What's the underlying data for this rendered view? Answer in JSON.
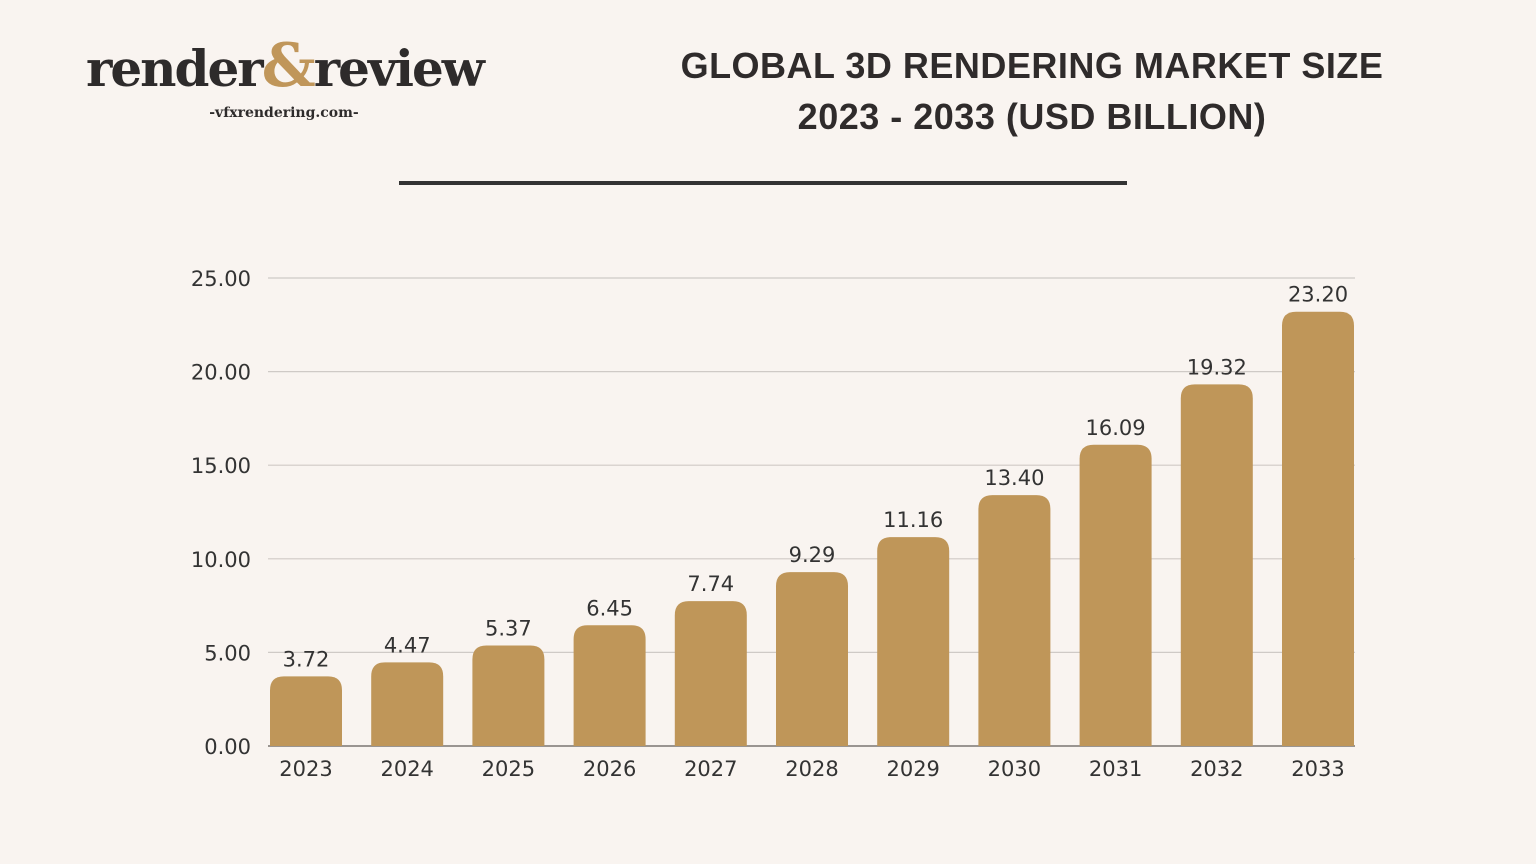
{
  "logo": {
    "text_left": "render",
    "ampersand": "&",
    "text_right": "review",
    "subtitle": "-vfxrendering.com-"
  },
  "colors": {
    "background": "#f9f4f0",
    "bar": "#bf9659",
    "text": "#333333",
    "grid": "#cfcac6",
    "accent": "#c0965a"
  },
  "chart_data": {
    "type": "bar",
    "title_line1": "GLOBAL 3D RENDERING MARKET SIZE",
    "title_line2": "2023 - 2033 (USD BILLION)",
    "categories": [
      "2023",
      "2024",
      "2025",
      "2026",
      "2027",
      "2028",
      "2029",
      "2030",
      "2031",
      "2032",
      "2033"
    ],
    "values": [
      3.72,
      4.47,
      5.37,
      6.45,
      7.74,
      9.29,
      11.16,
      13.4,
      16.09,
      19.32,
      23.2
    ],
    "value_labels": [
      "3.72",
      "4.47",
      "5.37",
      "6.45",
      "7.74",
      "9.29",
      "11.16",
      "13.40",
      "16.09",
      "19.32",
      "23.20"
    ],
    "ylim": [
      0,
      25
    ],
    "yticks": [
      "0.00",
      "5.00",
      "10.00",
      "15.00",
      "20.00",
      "25.00"
    ],
    "grid": true,
    "legend": "none"
  }
}
